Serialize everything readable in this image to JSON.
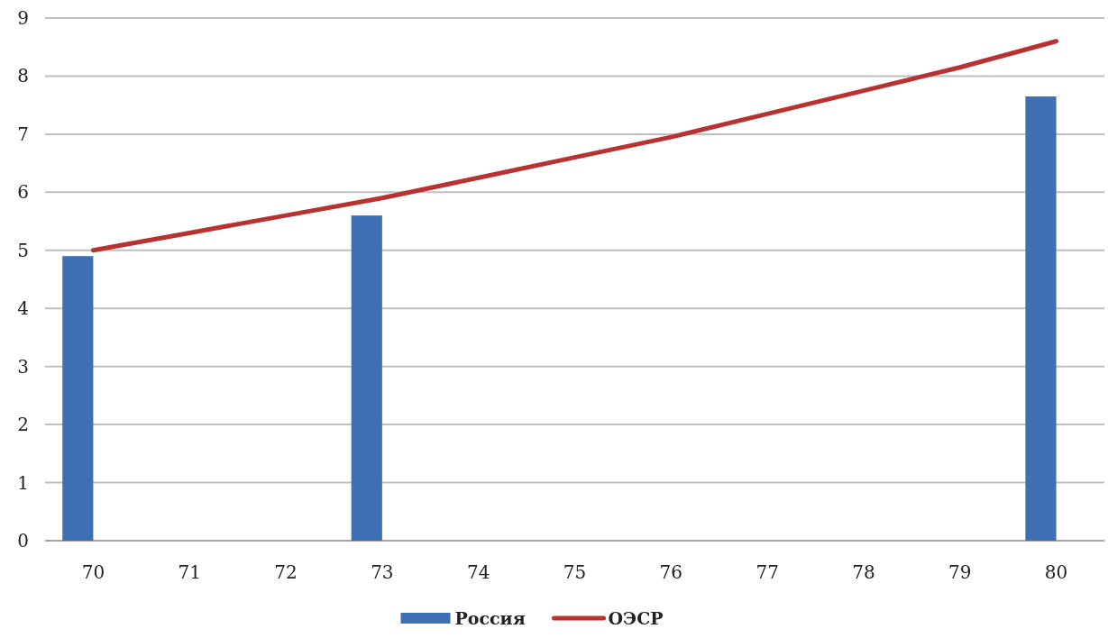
{
  "chart_data": {
    "type": "bar",
    "categories": [
      "70",
      "71",
      "72",
      "73",
      "74",
      "75",
      "76",
      "77",
      "78",
      "79",
      "80"
    ],
    "series": [
      {
        "name": "Россия",
        "color": "#3f6fb5",
        "values": [
          4.9,
          null,
          null,
          5.6,
          null,
          null,
          null,
          null,
          null,
          null,
          7.65
        ]
      },
      {
        "name": "ОЭСР",
        "type": "line",
        "color": "#b83232",
        "values": [
          5.0,
          5.3,
          5.6,
          5.9,
          6.25,
          6.6,
          6.95,
          7.35,
          7.75,
          8.15,
          8.6
        ]
      }
    ],
    "ylim": [
      0,
      9
    ],
    "yticks": [
      0,
      1,
      2,
      3,
      4,
      5,
      6,
      7,
      8,
      9
    ],
    "grid": "y",
    "legend": "bottom",
    "marker": "none",
    "line_style": "solid"
  }
}
